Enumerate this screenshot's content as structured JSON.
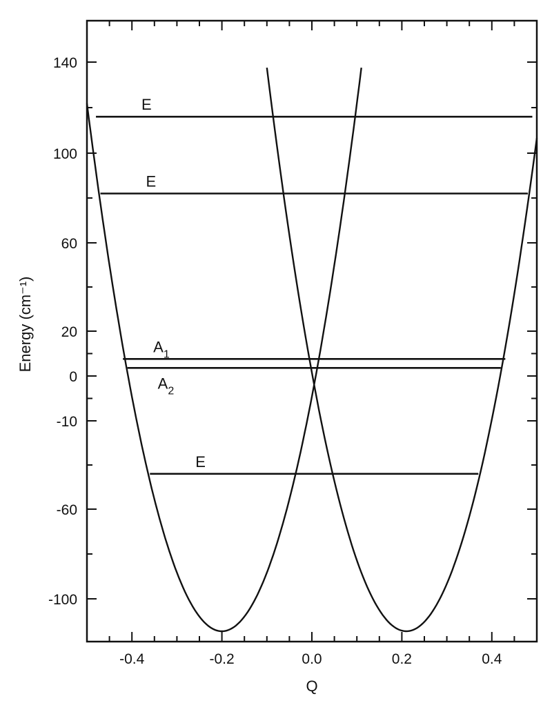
{
  "chart_data": {
    "type": "line",
    "title": "",
    "xlabel": "Q",
    "ylabel": "Energy (cm⁻¹)",
    "xlim": [
      -0.5,
      0.5
    ],
    "x_ticks": [
      -0.4,
      -0.2,
      0.0,
      0.2,
      0.4
    ],
    "x_tick_labels": [
      "-0.4",
      "-0.2",
      "0.0",
      "0.2",
      "0.4"
    ],
    "y_tick_labels": [
      "140",
      "100",
      "60",
      "20",
      "0",
      "-10",
      "-60",
      "-100"
    ],
    "grid": false,
    "legend": "none",
    "colors": {
      "line": "#111111",
      "background": "#ffffff"
    },
    "series": [
      {
        "type": "parabola",
        "vertex_Q": -0.2,
        "vertex_label": "-0.2",
        "x_range": [
          -0.5,
          0.11
        ]
      },
      {
        "type": "parabola",
        "vertex_Q": 0.21,
        "vertex_label": "0.2",
        "x_range": [
          -0.1,
          0.5
        ]
      }
    ],
    "levels": [
      {
        "label": "E",
        "sub": "",
        "x_range": [
          -0.48,
          0.49
        ],
        "y_tick_index": 0.6
      },
      {
        "label": "E",
        "sub": "",
        "x_range": [
          -0.47,
          0.48
        ],
        "y_tick_index": 1.45
      },
      {
        "label": "A",
        "sub": "1",
        "x_range": [
          -0.42,
          0.43
        ],
        "y_tick_index": 3.62
      },
      {
        "label": "A",
        "sub": "2",
        "x_range": [
          -0.41,
          0.42
        ],
        "y_tick_index": 3.82
      },
      {
        "label": "E",
        "sub": "",
        "x_range": [
          -0.36,
          0.37
        ],
        "y_tick_index": 5.6
      }
    ]
  }
}
